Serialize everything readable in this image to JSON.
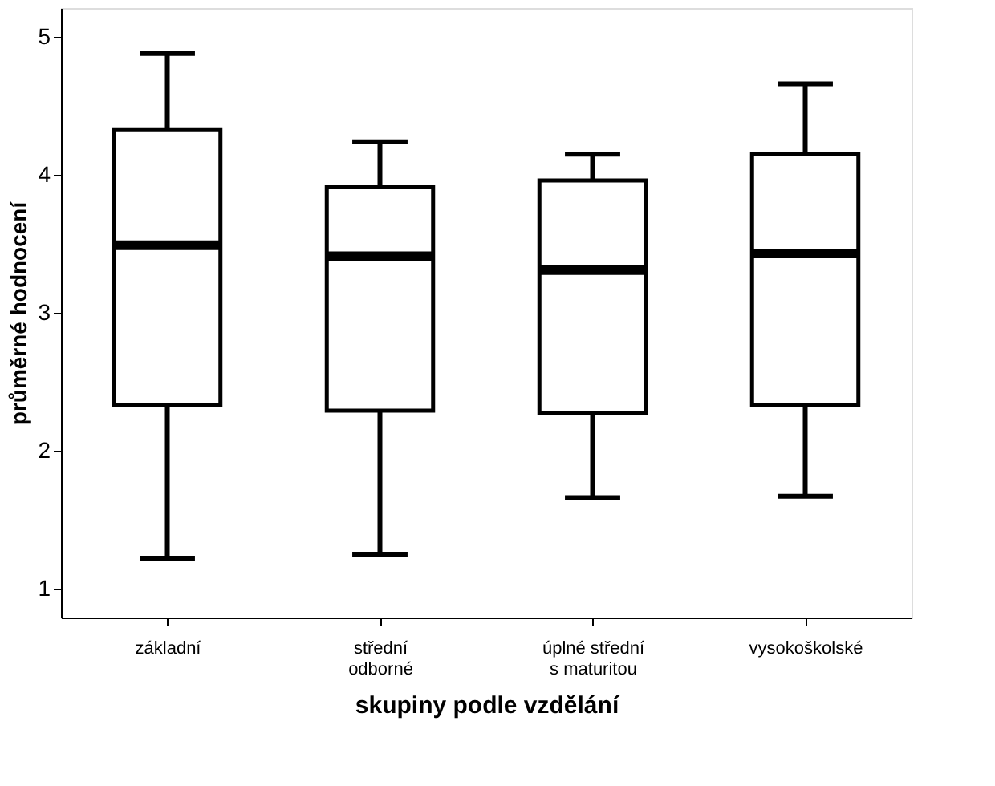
{
  "chart_data": {
    "type": "box",
    "xlabel": "skupiny podle vzdělání",
    "ylabel": "průměrné hodnocení",
    "categories": [
      "základní",
      "střední\nodborné",
      "úplné střední\ns maturitou",
      "vysokoškolské"
    ],
    "boxes": [
      {
        "low": 1.22,
        "q1": 2.33,
        "median": 3.49,
        "q3": 4.33,
        "high": 4.88
      },
      {
        "low": 1.25,
        "q1": 2.29,
        "median": 3.41,
        "q3": 3.91,
        "high": 4.24
      },
      {
        "low": 1.66,
        "q1": 2.27,
        "median": 3.31,
        "q3": 3.96,
        "high": 4.15
      },
      {
        "low": 1.67,
        "q1": 2.33,
        "median": 3.43,
        "q3": 4.15,
        "high": 4.66
      }
    ],
    "ylim": [
      0.79,
      5.21
    ],
    "yticks": [
      1,
      2,
      3,
      4,
      5
    ],
    "grid": false
  }
}
